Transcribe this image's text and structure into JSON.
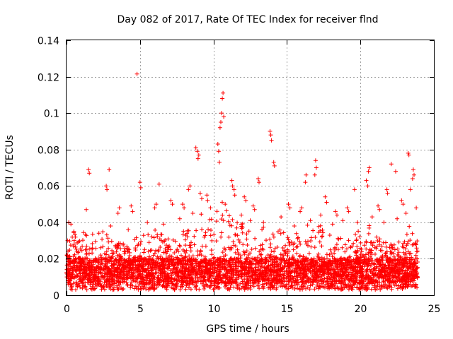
{
  "chart_data": {
    "type": "scatter",
    "title": "Day 082 of 2017, Rate Of TEC Index for receiver flnd",
    "xlabel": "GPS time / hours",
    "ylabel": "ROTI / TECUs",
    "xlim": [
      0,
      25
    ],
    "ylim": [
      0,
      0.14
    ],
    "x_ticks": [
      0,
      5,
      10,
      15,
      20,
      25
    ],
    "y_ticks": [
      0,
      0.02,
      0.04,
      0.06,
      0.08,
      0.1,
      0.12,
      0.14
    ],
    "x_tick_labels": [
      "0",
      "5",
      "10",
      "15",
      "20",
      "25"
    ],
    "y_tick_labels": [
      "0",
      "0.02",
      "0.04",
      "0.06",
      "0.08",
      "0.1",
      "0.12",
      "0.14"
    ],
    "grid": true,
    "marker": "+",
    "color": "#ff0000",
    "series": [
      {
        "name": "ROTI",
        "x": [
          4.8,
          10.65,
          10.6,
          10.55,
          10.7,
          10.5,
          10.45,
          13.85,
          13.9,
          13.95,
          8.8,
          8.9,
          9.0,
          8.95,
          10.3,
          10.35,
          10.4,
          1.5,
          1.55,
          2.9,
          16.95,
          17.0,
          16.9,
          14.1,
          14.15,
          23.25,
          23.3,
          22.1,
          20.6,
          20.55,
          22.4,
          2.7,
          2.75,
          5.0,
          5.05,
          6.3,
          8.4,
          8.3,
          11.25,
          11.3,
          16.3,
          16.25,
          19.6,
          20.4,
          20.5,
          21.8,
          21.85,
          23.6,
          23.65,
          23.55,
          9.55,
          9.6,
          11.4,
          11.45,
          12.1,
          12.2,
          13.05,
          13.1,
          0.15,
          0.3,
          1.35,
          3.5,
          3.6,
          4.4,
          4.5,
          6.0,
          6.1,
          7.1,
          7.2,
          7.9,
          8.0,
          9.1,
          9.2,
          12.7,
          12.8,
          15.1,
          15.2,
          15.9,
          16.0,
          17.6,
          17.7,
          18.3,
          18.4,
          19.1,
          19.2,
          21.2,
          21.3,
          22.8,
          22.9,
          23.4,
          0.5,
          2.2,
          3.0,
          4.2,
          5.5,
          6.6,
          7.7,
          8.6,
          9.8,
          10.8,
          11.9,
          12.5,
          13.4,
          14.6,
          15.5,
          16.6,
          17.3,
          18.1,
          18.8,
          19.8,
          20.8,
          21.6,
          22.5,
          23.1,
          23.8
        ],
        "y": [
          0.1215,
          0.111,
          0.108,
          0.1,
          0.098,
          0.095,
          0.092,
          0.09,
          0.088,
          0.085,
          0.081,
          0.079,
          0.077,
          0.075,
          0.083,
          0.079,
          0.073,
          0.069,
          0.067,
          0.069,
          0.074,
          0.07,
          0.066,
          0.073,
          0.071,
          0.078,
          0.077,
          0.072,
          0.07,
          0.068,
          0.068,
          0.06,
          0.058,
          0.062,
          0.059,
          0.061,
          0.06,
          0.058,
          0.063,
          0.06,
          0.066,
          0.062,
          0.058,
          0.063,
          0.06,
          0.058,
          0.056,
          0.069,
          0.066,
          0.064,
          0.055,
          0.052,
          0.058,
          0.055,
          0.054,
          0.052,
          0.064,
          0.062,
          0.04,
          0.039,
          0.047,
          0.045,
          0.048,
          0.049,
          0.046,
          0.048,
          0.05,
          0.052,
          0.05,
          0.05,
          0.048,
          0.056,
          0.053,
          0.049,
          0.047,
          0.05,
          0.048,
          0.046,
          0.048,
          0.054,
          0.051,
          0.046,
          0.044,
          0.048,
          0.046,
          0.049,
          0.047,
          0.052,
          0.05,
          0.058,
          0.035,
          0.034,
          0.038,
          0.036,
          0.04,
          0.039,
          0.042,
          0.045,
          0.048,
          0.05,
          0.044,
          0.041,
          0.04,
          0.043,
          0.038,
          0.041,
          0.044,
          0.039,
          0.041,
          0.04,
          0.043,
          0.04,
          0.042,
          0.045,
          0.048
        ]
      }
    ],
    "dense_band": {
      "x_start": 0,
      "x_end": 23.9,
      "y_floor": 0.003,
      "typical_low": 0.007,
      "typical_high": 0.02,
      "upper_envelope": [
        [
          0,
          0.03
        ],
        [
          0.5,
          0.035
        ],
        [
          1.0,
          0.033
        ],
        [
          1.5,
          0.038
        ],
        [
          2.0,
          0.03
        ],
        [
          2.5,
          0.036
        ],
        [
          3.0,
          0.033
        ],
        [
          3.5,
          0.03
        ],
        [
          4.0,
          0.028
        ],
        [
          4.5,
          0.034
        ],
        [
          5.0,
          0.036
        ],
        [
          5.5,
          0.034
        ],
        [
          6.0,
          0.036
        ],
        [
          6.5,
          0.035
        ],
        [
          7.0,
          0.034
        ],
        [
          7.5,
          0.036
        ],
        [
          8.0,
          0.036
        ],
        [
          8.5,
          0.042
        ],
        [
          9.0,
          0.048
        ],
        [
          9.5,
          0.045
        ],
        [
          10.0,
          0.05
        ],
        [
          10.5,
          0.052
        ],
        [
          11.0,
          0.048
        ],
        [
          11.5,
          0.045
        ],
        [
          12.0,
          0.042
        ],
        [
          12.5,
          0.04
        ],
        [
          13.0,
          0.04
        ],
        [
          13.5,
          0.042
        ],
        [
          14.0,
          0.04
        ],
        [
          14.5,
          0.036
        ],
        [
          15.0,
          0.034
        ],
        [
          15.5,
          0.034
        ],
        [
          16.0,
          0.036
        ],
        [
          16.5,
          0.04
        ],
        [
          17.0,
          0.042
        ],
        [
          17.5,
          0.036
        ],
        [
          18.0,
          0.034
        ],
        [
          18.5,
          0.032
        ],
        [
          19.0,
          0.032
        ],
        [
          19.5,
          0.034
        ],
        [
          20.0,
          0.036
        ],
        [
          20.5,
          0.04
        ],
        [
          21.0,
          0.034
        ],
        [
          21.5,
          0.03
        ],
        [
          22.0,
          0.028
        ],
        [
          22.5,
          0.03
        ],
        [
          23.0,
          0.034
        ],
        [
          23.5,
          0.04
        ],
        [
          23.9,
          0.03
        ]
      ]
    }
  }
}
